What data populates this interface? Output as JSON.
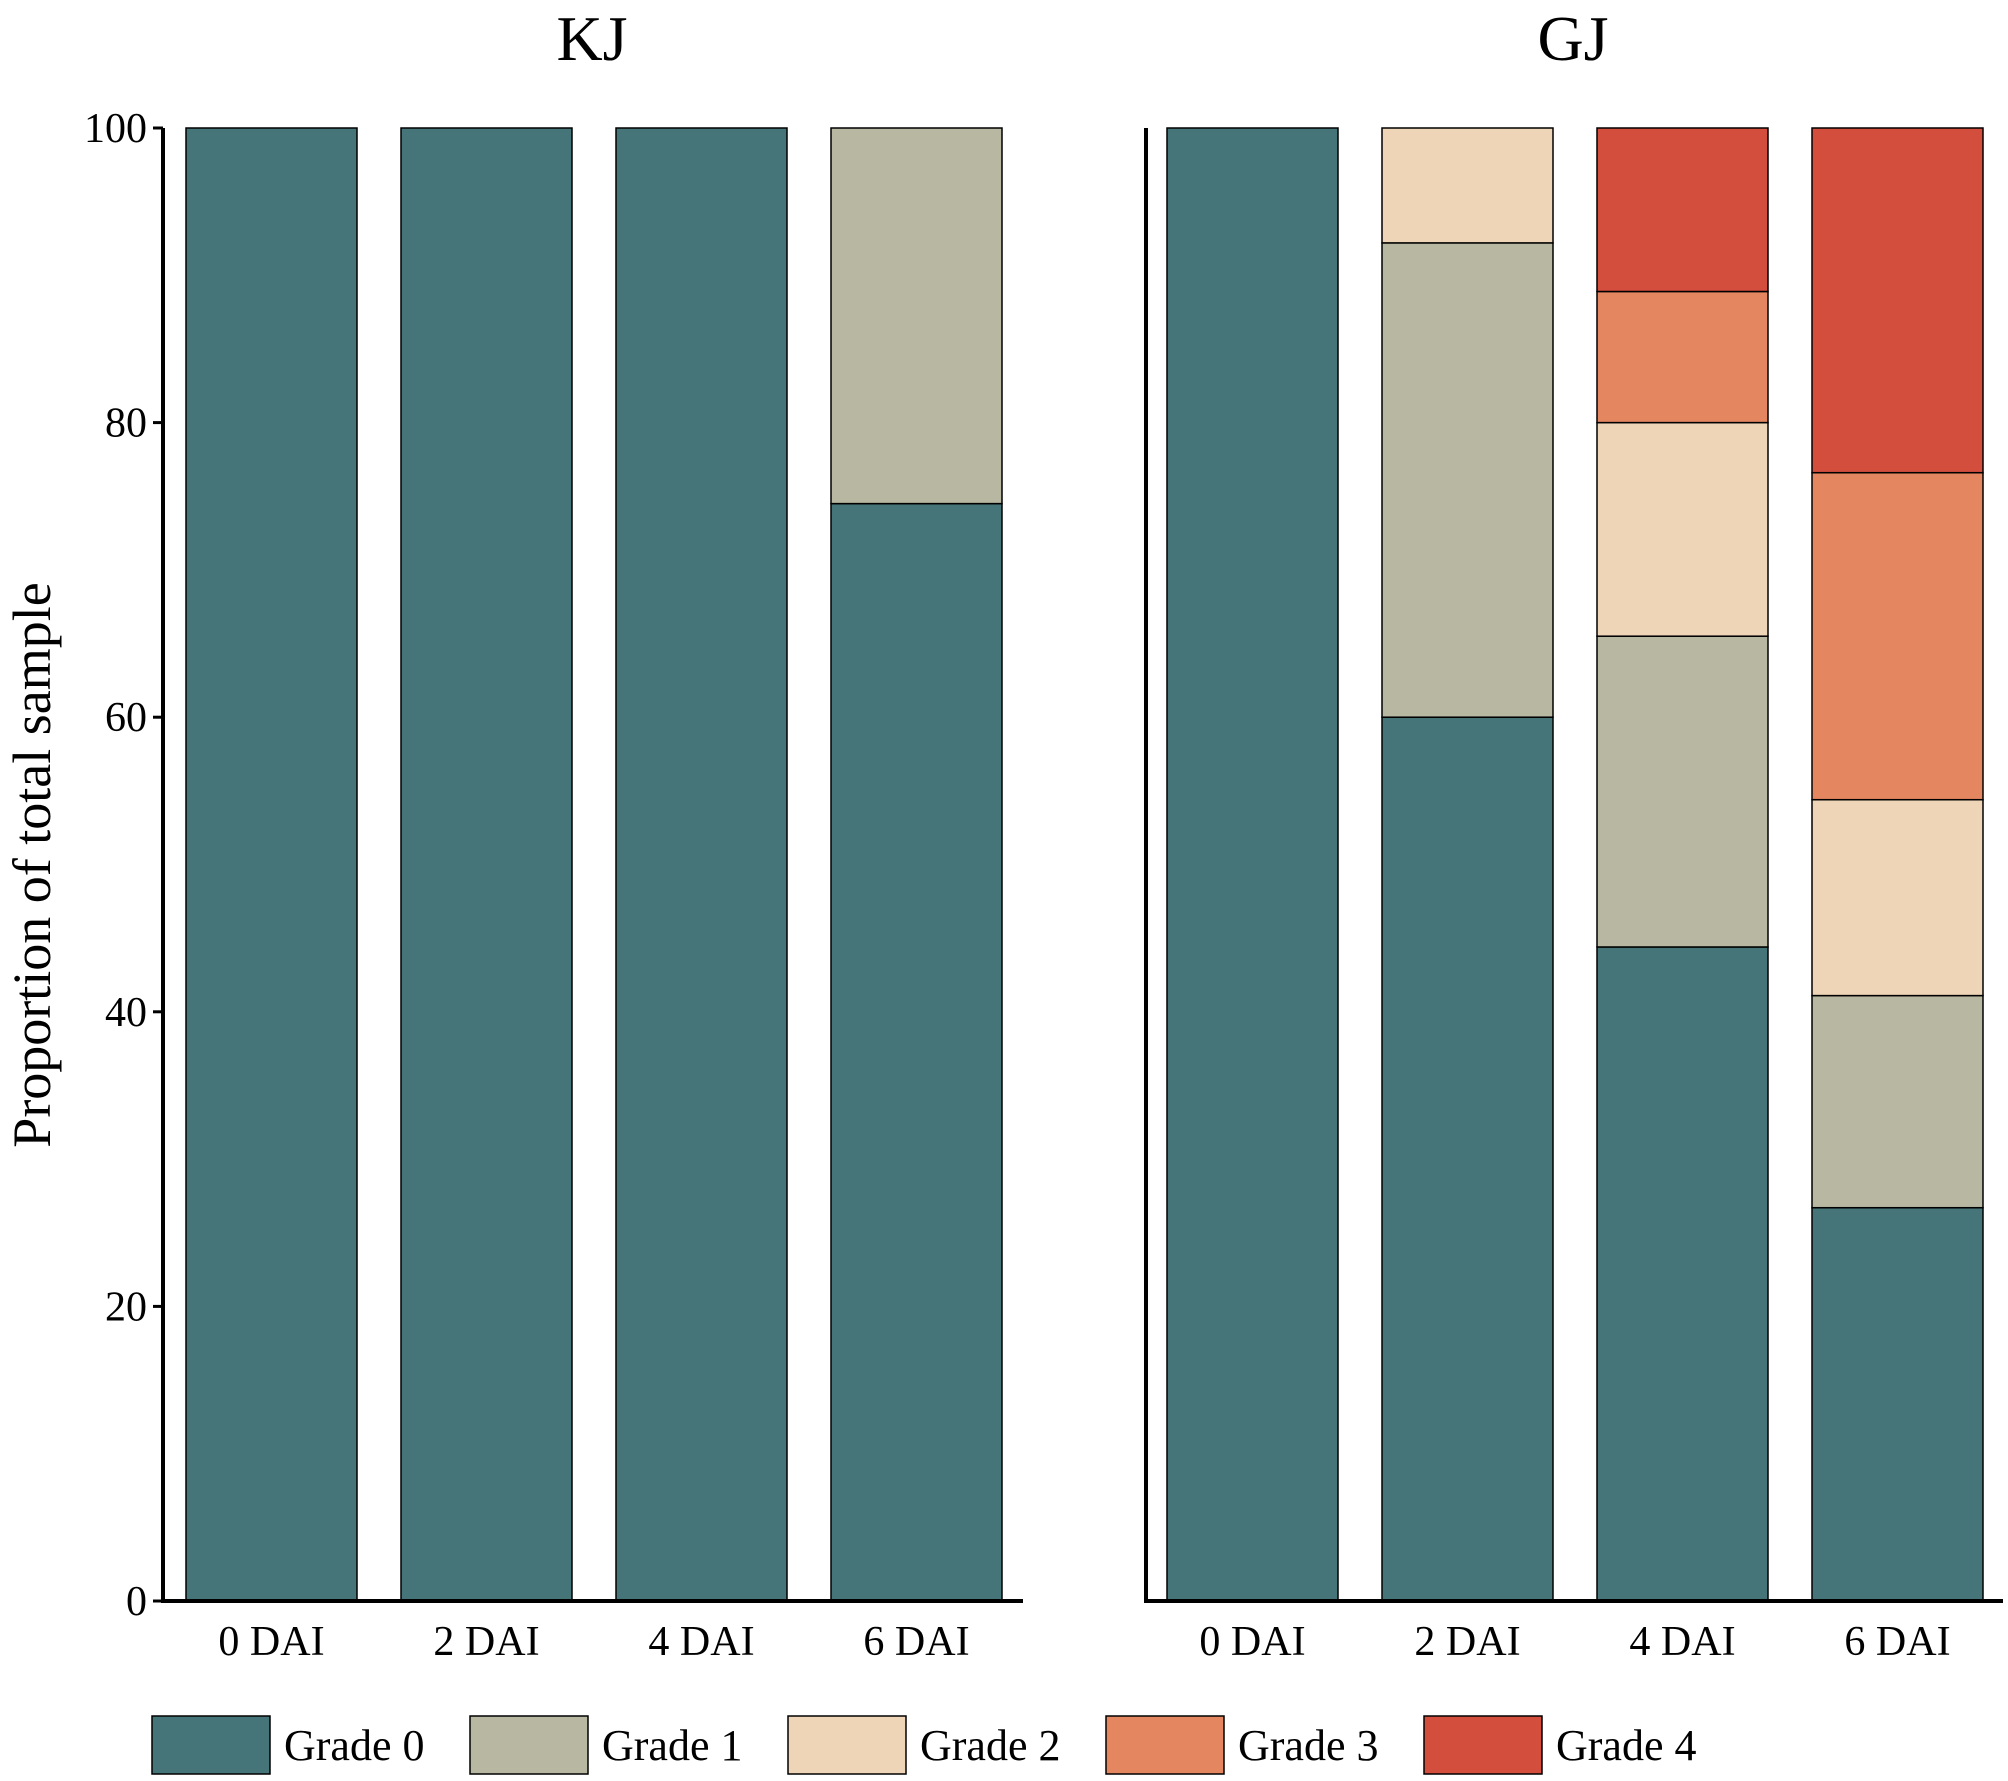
{
  "chart_data": [
    {
      "type": "bar",
      "stacked": true,
      "title": "KJ",
      "xlabel": "",
      "ylabel": "Proportion of total sample",
      "ylim": [
        0,
        100
      ],
      "yticks": [
        "0",
        "20",
        "40",
        "60",
        "80",
        "100"
      ],
      "categories": [
        "0 DAI",
        "2 DAI",
        "4 DAI",
        "6 DAI"
      ],
      "series": [
        {
          "name": "Grade 0",
          "values": [
            100,
            100,
            100,
            74.5
          ]
        },
        {
          "name": "Grade 1",
          "values": [
            0,
            0,
            0,
            25.5
          ]
        },
        {
          "name": "Grade 2",
          "values": [
            0,
            0,
            0,
            0
          ]
        },
        {
          "name": "Grade 3",
          "values": [
            0,
            0,
            0,
            0
          ]
        },
        {
          "name": "Grade 4",
          "values": [
            0,
            0,
            0,
            0
          ]
        }
      ]
    },
    {
      "type": "bar",
      "stacked": true,
      "title": "GJ",
      "xlabel": "",
      "ylabel": "",
      "ylim": [
        0,
        100
      ],
      "categories": [
        "0 DAI",
        "2 DAI",
        "4 DAI",
        "6 DAI"
      ],
      "series": [
        {
          "name": "Grade 0",
          "values": [
            100,
            60,
            44.4,
            26.7
          ]
        },
        {
          "name": "Grade 1",
          "values": [
            0,
            32.2,
            21.1,
            14.4
          ]
        },
        {
          "name": "Grade 2",
          "values": [
            0,
            7.8,
            14.5,
            13.3
          ]
        },
        {
          "name": "Grade 3",
          "values": [
            0,
            0,
            8.9,
            22.2
          ]
        },
        {
          "name": "Grade 4",
          "values": [
            0,
            0,
            11.1,
            23.4
          ]
        }
      ]
    }
  ],
  "legend": [
    {
      "label": "Grade 0",
      "color": "#467579"
    },
    {
      "label": "Grade 1",
      "color": "#B8B7A1"
    },
    {
      "label": "Grade 2",
      "color": "#EED5B7"
    },
    {
      "label": "Grade 3",
      "color": "#E4865F"
    },
    {
      "label": "Grade 4",
      "color": "#D44E3E"
    }
  ],
  "colors": {
    "Grade 0": "#467579",
    "Grade 1": "#B8B7A1",
    "Grade 2": "#EED5B7",
    "Grade 3": "#E4865F",
    "Grade 4": "#D44E3E"
  }
}
